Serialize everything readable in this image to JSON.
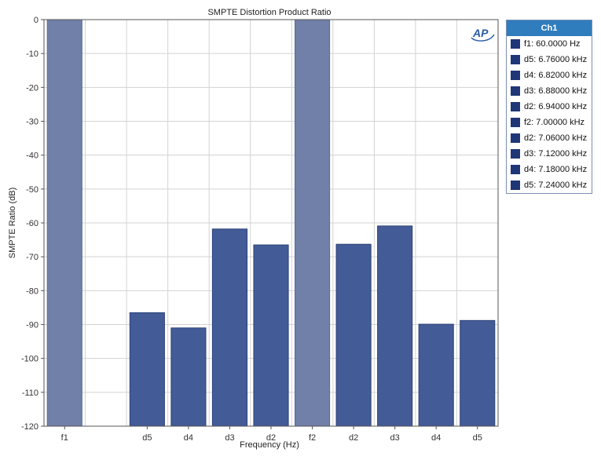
{
  "colors": {
    "bar_primary": "#7080a8",
    "bar_primary_stroke": "#5a6b94",
    "bar_product": "#435b96",
    "bar_product_stroke": "#2d4379",
    "grid": "#d3d3d3",
    "axis": "#555555",
    "legend_header": "#2f7dbd",
    "legend_swatch": "#1f3677",
    "logo": "#2a5aa8"
  },
  "logo": {
    "text": "AP"
  },
  "legend": {
    "header": "Ch1",
    "items": [
      "f1: 60.0000 Hz",
      "d5: 6.76000 kHz",
      "d4: 6.82000 kHz",
      "d3: 6.88000 kHz",
      "d2: 6.94000 kHz",
      "f2: 7.00000 kHz",
      "d2: 7.06000 kHz",
      "d3: 7.12000 kHz",
      "d4: 7.18000 kHz",
      "d5: 7.24000 kHz"
    ]
  },
  "chart_data": {
    "type": "bar",
    "title": "SMPTE Distortion Product Ratio",
    "xlabel": "Frequency (Hz)",
    "ylabel": "SMPTE Ratio (dB)",
    "ylim": [
      -120,
      0
    ],
    "yticks": [
      0,
      -10,
      -20,
      -30,
      -40,
      -50,
      -60,
      -70,
      -80,
      -90,
      -100,
      -110,
      -120
    ],
    "grid": true,
    "legend_position": "right",
    "categories": [
      "f1",
      "",
      "d5",
      "d4",
      "d3",
      "d2",
      "f2",
      "d2",
      "d3",
      "d4",
      "d5"
    ],
    "values": [
      0,
      null,
      -86.5,
      -91,
      -61.8,
      -66.5,
      0,
      -66.3,
      -60.9,
      -89.9,
      -88.8
    ],
    "kinds": [
      "primary",
      "gap",
      "product",
      "product",
      "product",
      "product",
      "primary",
      "product",
      "product",
      "product",
      "product"
    ]
  }
}
